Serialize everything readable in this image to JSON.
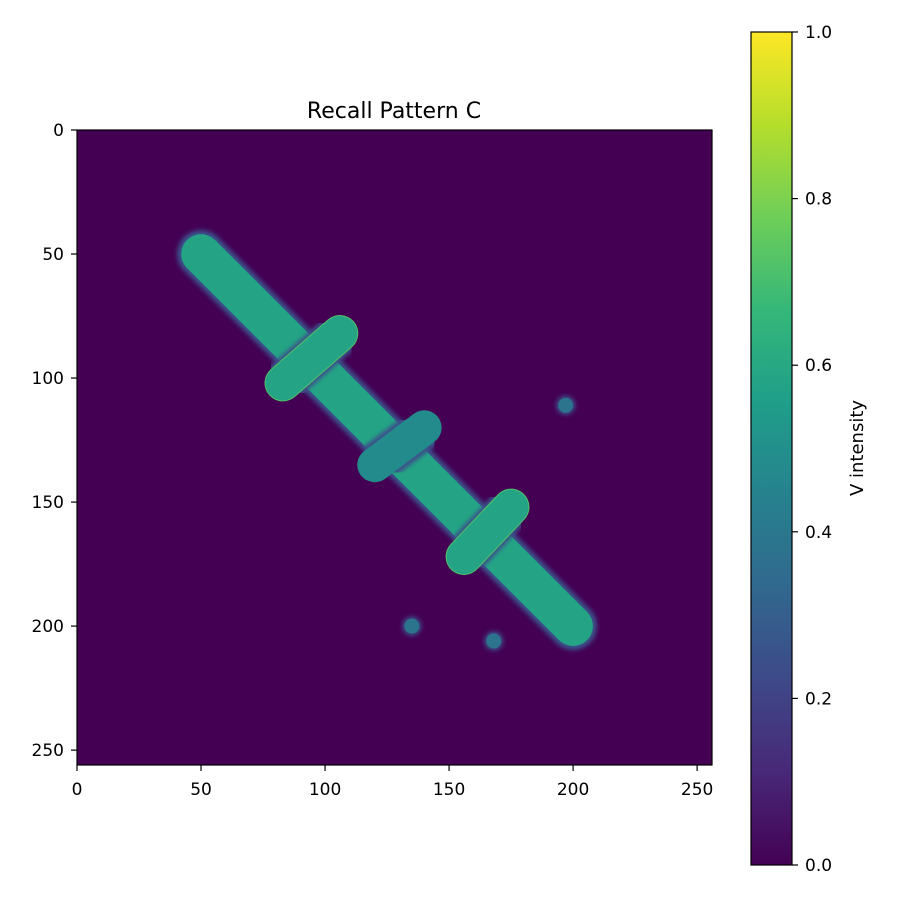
{
  "chart_data": {
    "type": "heatmap",
    "title": "Recall Pattern C",
    "xlabel": "",
    "ylabel": "",
    "xlim": [
      0,
      256
    ],
    "ylim": [
      256,
      0
    ],
    "x_ticks": [
      0,
      50,
      100,
      150,
      200,
      250
    ],
    "y_ticks": [
      0,
      50,
      100,
      150,
      200,
      250
    ],
    "image_size": [
      256,
      256
    ],
    "background_value": 0.0,
    "colormap": "viridis",
    "colorbar": {
      "label": "V intensity",
      "range": [
        0.0,
        1.0
      ],
      "ticks": [
        "0.0",
        "0.2",
        "0.4",
        "0.6",
        "0.8",
        "1.0"
      ],
      "colors": [
        "#440154",
        "#482878",
        "#3e4989",
        "#31688e",
        "#26828e",
        "#1f9e89",
        "#35b779",
        "#6ece58",
        "#b5de2b",
        "#fde725"
      ]
    },
    "features": [
      {
        "name": "main-diagonal-bar",
        "shape": "capsule",
        "from": [
          50,
          50
        ],
        "to": [
          200,
          200
        ],
        "half_width": 8,
        "value": 0.58
      },
      {
        "name": "cross-bar-upper",
        "shape": "capsule",
        "from": [
          83,
          102
        ],
        "to": [
          106,
          82
        ],
        "half_width": 7,
        "value": 0.58,
        "edge_value": 0.72
      },
      {
        "name": "cross-bar-middle",
        "shape": "capsule",
        "from": [
          120,
          135
        ],
        "to": [
          140,
          120
        ],
        "half_width": 7,
        "value": 0.48
      },
      {
        "name": "cross-bar-lower",
        "shape": "capsule",
        "from": [
          156,
          172
        ],
        "to": [
          175,
          152
        ],
        "half_width": 7,
        "value": 0.58,
        "edge_value": 0.72
      },
      {
        "name": "dot-1",
        "shape": "dot",
        "center": [
          197,
          111
        ],
        "radius": 3,
        "value": 0.38
      },
      {
        "name": "dot-2",
        "shape": "dot",
        "center": [
          135,
          200
        ],
        "radius": 3,
        "value": 0.38
      },
      {
        "name": "dot-3",
        "shape": "dot",
        "center": [
          168,
          206
        ],
        "radius": 3,
        "value": 0.38
      }
    ]
  }
}
